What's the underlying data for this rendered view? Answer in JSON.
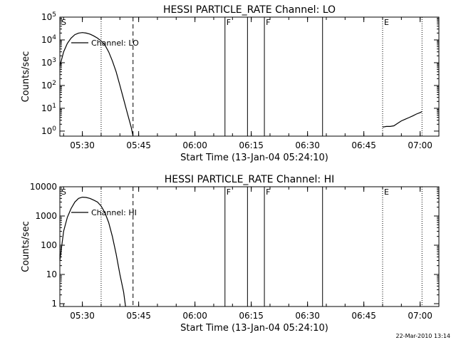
{
  "footer": {
    "timestamp": "22-Mar-2010 13:14"
  },
  "chart_data": [
    {
      "type": "line",
      "title": "HESSI PARTICLE_RATE Channel: LO",
      "xlabel": "Start Time (13-Jan-04 05:24:10)",
      "ylabel": "Counts/sec",
      "y_scale": "log",
      "xlim": [
        "05:24",
        "07:05"
      ],
      "ylim": [
        0.6,
        100000
      ],
      "x_tick_labels": [
        "05:30",
        "05:45",
        "06:00",
        "06:15",
        "06:30",
        "06:45",
        "07:00"
      ],
      "y_tick_labels": [
        "10^0",
        "10^1",
        "10^2",
        "10^3",
        "10^4",
        "10^5"
      ],
      "legend": {
        "label": "Channel: LO",
        "placement": "upper-left"
      },
      "markers": [
        {
          "time": "05:24",
          "style": "solid",
          "label": "S"
        },
        {
          "time": "05:35",
          "style": "dotted",
          "label": ""
        },
        {
          "time": "05:43.5",
          "style": "dashed",
          "label": ""
        },
        {
          "time": "06:08",
          "style": "solid",
          "label": "F"
        },
        {
          "time": "06:14",
          "style": "solid",
          "label": ""
        },
        {
          "time": "06:18.5",
          "style": "solid",
          "label": "F"
        },
        {
          "time": "06:34",
          "style": "solid",
          "label": ""
        },
        {
          "time": "06:50",
          "style": "dotted",
          "label": "E"
        },
        {
          "time": "07:00.5",
          "style": "dotted",
          "label": ""
        }
      ],
      "series": [
        {
          "values": [
            [
              "05:24",
              700
            ],
            [
              "05:25",
              3000
            ],
            [
              "05:26",
              7000
            ],
            [
              "05:27",
              12000
            ],
            [
              "05:28",
              17000
            ],
            [
              "05:29",
              20000
            ],
            [
              "05:30",
              21000
            ],
            [
              "05:31",
              20000
            ],
            [
              "05:32",
              18000
            ],
            [
              "05:33",
              15000
            ],
            [
              "05:34",
              12000
            ],
            [
              "05:35",
              9000
            ],
            [
              "05:36",
              6000
            ],
            [
              "05:37",
              3000
            ],
            [
              "05:38",
              1200
            ],
            [
              "05:39",
              400
            ],
            [
              "05:40",
              100
            ],
            [
              "05:41",
              25
            ],
            [
              "05:42",
              6
            ],
            [
              "05:43",
              1.5
            ],
            [
              "05:43.5",
              0.6
            ]
          ]
        },
        {
          "values": [
            [
              "06:50",
              1.5
            ],
            [
              "06:51",
              1.6
            ],
            [
              "06:52",
              1.6
            ],
            [
              "06:53",
              1.7
            ],
            [
              "06:54",
              2.2
            ],
            [
              "06:55",
              2.8
            ],
            [
              "06:56",
              3.3
            ],
            [
              "06:57",
              3.9
            ],
            [
              "06:58",
              4.6
            ],
            [
              "06:59",
              5.6
            ],
            [
              "07:00",
              6.5
            ],
            [
              "07:00.5",
              7.2
            ]
          ]
        }
      ]
    },
    {
      "type": "line",
      "title": "HESSI PARTICLE_RATE Channel: HI",
      "xlabel": "Start Time (13-Jan-04 05:24:10)",
      "ylabel": "Counts/sec",
      "y_scale": "log",
      "xlim": [
        "05:24",
        "07:05"
      ],
      "ylim": [
        0.8,
        10000
      ],
      "x_tick_labels": [
        "05:30",
        "05:45",
        "06:00",
        "06:15",
        "06:30",
        "06:45",
        "07:00"
      ],
      "y_tick_labels": [
        "1",
        "10",
        "100",
        "1000",
        "10000"
      ],
      "legend": {
        "label": "Channel: HI",
        "placement": "upper-left"
      },
      "markers": [
        {
          "time": "05:24",
          "style": "solid",
          "label": "S"
        },
        {
          "time": "05:35",
          "style": "dotted",
          "label": ""
        },
        {
          "time": "05:43.5",
          "style": "dashed",
          "label": ""
        },
        {
          "time": "06:08",
          "style": "solid",
          "label": "F"
        },
        {
          "time": "06:14",
          "style": "solid",
          "label": ""
        },
        {
          "time": "06:18.5",
          "style": "solid",
          "label": "F"
        },
        {
          "time": "06:34",
          "style": "solid",
          "label": ""
        },
        {
          "time": "06:50",
          "style": "dotted",
          "label": "E"
        },
        {
          "time": "07:00.5",
          "style": "dotted",
          "label": ""
        }
      ],
      "series": [
        {
          "values": [
            [
              "05:24",
              30
            ],
            [
              "05:25",
              300
            ],
            [
              "05:26",
              900
            ],
            [
              "05:27",
              1800
            ],
            [
              "05:28",
              3000
            ],
            [
              "05:29",
              4000
            ],
            [
              "05:30",
              4400
            ],
            [
              "05:31",
              4300
            ],
            [
              "05:32",
              4000
            ],
            [
              "05:33",
              3500
            ],
            [
              "05:34",
              3000
            ],
            [
              "05:35",
              2200
            ],
            [
              "05:36",
              1300
            ],
            [
              "05:37",
              600
            ],
            [
              "05:38",
              200
            ],
            [
              "05:39",
              50
            ],
            [
              "05:40",
              10
            ],
            [
              "05:41",
              2.5
            ],
            [
              "05:41.5",
              0.8
            ]
          ]
        }
      ]
    }
  ]
}
